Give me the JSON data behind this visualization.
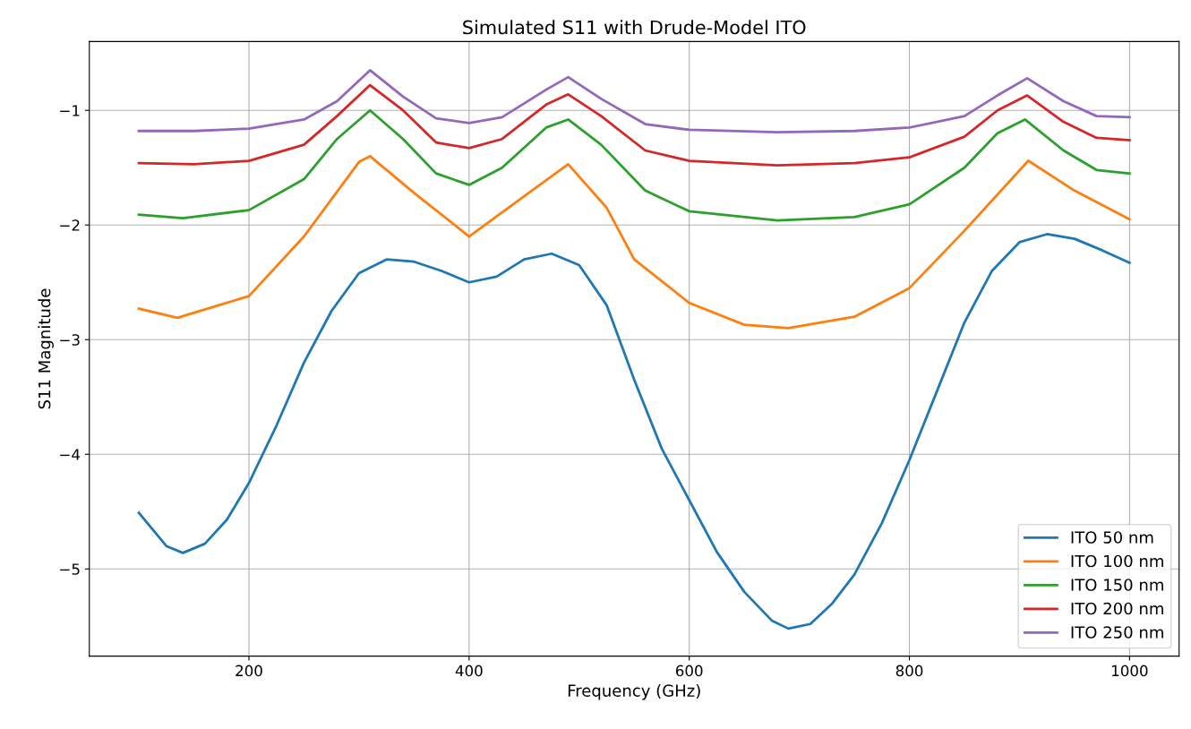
{
  "chart_data": {
    "type": "line",
    "title": "Simulated S11 with Drude-Model ITO",
    "xlabel": "Frequency (GHz)",
    "ylabel": "S11 Magnitude",
    "xlim": [
      55,
      1045
    ],
    "ylim": [
      -5.76,
      -0.4
    ],
    "xticks": [
      200,
      400,
      600,
      800,
      1000
    ],
    "yticks": [
      -5,
      -4,
      -3,
      -2,
      -1
    ],
    "grid": true,
    "legend": "lower right",
    "series": [
      {
        "name": "ITO 50 nm",
        "color": "#1f77b4",
        "x": [
          100,
          125,
          140,
          160,
          180,
          200,
          225,
          250,
          275,
          300,
          325,
          350,
          375,
          400,
          425,
          450,
          475,
          500,
          525,
          550,
          575,
          600,
          625,
          650,
          675,
          690,
          710,
          730,
          750,
          775,
          800,
          825,
          850,
          875,
          900,
          925,
          950,
          975,
          1000
        ],
        "values": [
          -4.51,
          -4.8,
          -4.86,
          -4.78,
          -4.57,
          -4.25,
          -3.75,
          -3.2,
          -2.75,
          -2.42,
          -2.3,
          -2.32,
          -2.4,
          -2.5,
          -2.45,
          -2.3,
          -2.25,
          -2.35,
          -2.7,
          -3.35,
          -3.95,
          -4.4,
          -4.85,
          -5.2,
          -5.45,
          -5.52,
          -5.48,
          -5.3,
          -5.05,
          -4.6,
          -4.05,
          -3.45,
          -2.85,
          -2.4,
          -2.15,
          -2.08,
          -2.12,
          -2.22,
          -2.33
        ]
      },
      {
        "name": "ITO 100 nm",
        "color": "#ff7f0e",
        "x": [
          100,
          135,
          200,
          250,
          300,
          310,
          350,
          400,
          450,
          490,
          525,
          550,
          600,
          650,
          690,
          750,
          800,
          850,
          908,
          950,
          1000
        ],
        "values": [
          -2.73,
          -2.81,
          -2.62,
          -2.1,
          -1.45,
          -1.4,
          -1.72,
          -2.1,
          -1.75,
          -1.47,
          -1.85,
          -2.3,
          -2.68,
          -2.87,
          -2.9,
          -2.8,
          -2.55,
          -2.05,
          -1.44,
          -1.7,
          -1.95
        ]
      },
      {
        "name": "ITO 150 nm",
        "color": "#2ca02c",
        "x": [
          100,
          140,
          200,
          250,
          280,
          310,
          340,
          370,
          400,
          430,
          470,
          490,
          520,
          560,
          600,
          680,
          750,
          800,
          850,
          880,
          905,
          940,
          970,
          1000
        ],
        "values": [
          -1.91,
          -1.94,
          -1.87,
          -1.6,
          -1.25,
          -1.0,
          -1.25,
          -1.55,
          -1.65,
          -1.5,
          -1.15,
          -1.08,
          -1.3,
          -1.7,
          -1.88,
          -1.96,
          -1.93,
          -1.82,
          -1.5,
          -1.2,
          -1.08,
          -1.35,
          -1.52,
          -1.55
        ]
      },
      {
        "name": "ITO 200 nm",
        "color": "#d62728",
        "x": [
          100,
          150,
          200,
          250,
          280,
          310,
          340,
          370,
          400,
          430,
          470,
          490,
          520,
          560,
          600,
          680,
          750,
          800,
          850,
          880,
          907,
          940,
          970,
          1000
        ],
        "values": [
          -1.46,
          -1.47,
          -1.44,
          -1.3,
          -1.05,
          -0.78,
          -1.0,
          -1.28,
          -1.33,
          -1.25,
          -0.95,
          -0.86,
          -1.05,
          -1.35,
          -1.44,
          -1.48,
          -1.46,
          -1.41,
          -1.23,
          -1.0,
          -0.87,
          -1.1,
          -1.24,
          -1.26
        ]
      },
      {
        "name": "ITO 250 nm",
        "color": "#9467bd",
        "x": [
          100,
          150,
          200,
          250,
          280,
          310,
          340,
          370,
          400,
          430,
          470,
          490,
          520,
          560,
          600,
          680,
          750,
          800,
          850,
          880,
          907,
          940,
          970,
          1000
        ],
        "values": [
          -1.18,
          -1.18,
          -1.16,
          -1.08,
          -0.92,
          -0.65,
          -0.88,
          -1.07,
          -1.11,
          -1.06,
          -0.82,
          -0.71,
          -0.9,
          -1.12,
          -1.17,
          -1.19,
          -1.18,
          -1.15,
          -1.05,
          -0.87,
          -0.72,
          -0.92,
          -1.05,
          -1.06
        ]
      }
    ]
  }
}
